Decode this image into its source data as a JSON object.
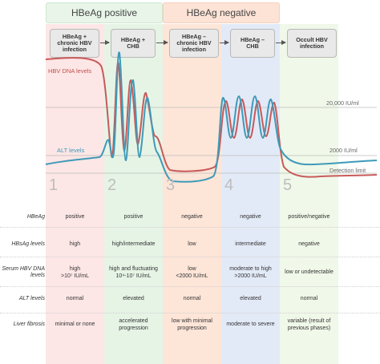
{
  "groups": {
    "positive": "HBeAg positive",
    "negative": "HBeAg negative"
  },
  "phases": [
    {
      "label": "HBeAg +\nchronic HBV\ninfection",
      "number": "1",
      "color": "#fde3e3"
    },
    {
      "label": "HBeAg +\nCHB",
      "number": "2",
      "color": "#e2f3e2"
    },
    {
      "label": "HBeAg –\nchronic HBV\ninfection",
      "number": "3",
      "color": "#fde2d4"
    },
    {
      "label": "HBeAg –\nCHB",
      "number": "4",
      "color": "#e1e8f6"
    },
    {
      "label": "Occult HBV\ninfection",
      "number": "5",
      "color": "#eef7e6"
    }
  ],
  "chart": {
    "dna_label": "HBV DNA levels",
    "alt_label": "ALT levels",
    "ref_lines": [
      "20,000 IU/ml",
      "2000 IU/ml",
      "Detection limit"
    ],
    "dna_color": "#c85a5a",
    "alt_color": "#3e9ab8"
  },
  "rows": [
    {
      "label": "HBeAg",
      "cells": [
        "positive",
        "positive",
        "negative",
        "negative",
        "positive/negative"
      ]
    },
    {
      "label": "HBsAg levels",
      "cells": [
        "high",
        "high/intermediate",
        "low",
        "intermediate",
        "negative"
      ]
    },
    {
      "label": "Serum HBV DNA\nlevels",
      "cells": [
        "high\n>10⁷ IU/mL",
        "high and fluctuating\n10⁴-10⁷ IU/mL",
        "low\n<2000 IU/mL",
        "moderate to high\n>2000 IU/mL",
        "low or undetectable"
      ]
    },
    {
      "label": "ALT levels",
      "cells": [
        "normal",
        "elevated",
        "normal",
        "elevated",
        "normal"
      ]
    },
    {
      "label": "Liver fibrosis",
      "cells": [
        "minimal or none",
        "accelerated\nprogression",
        "low with minimal\nprogression",
        "moderate to severe",
        "variable (result of\nprevious phases)"
      ]
    }
  ]
}
